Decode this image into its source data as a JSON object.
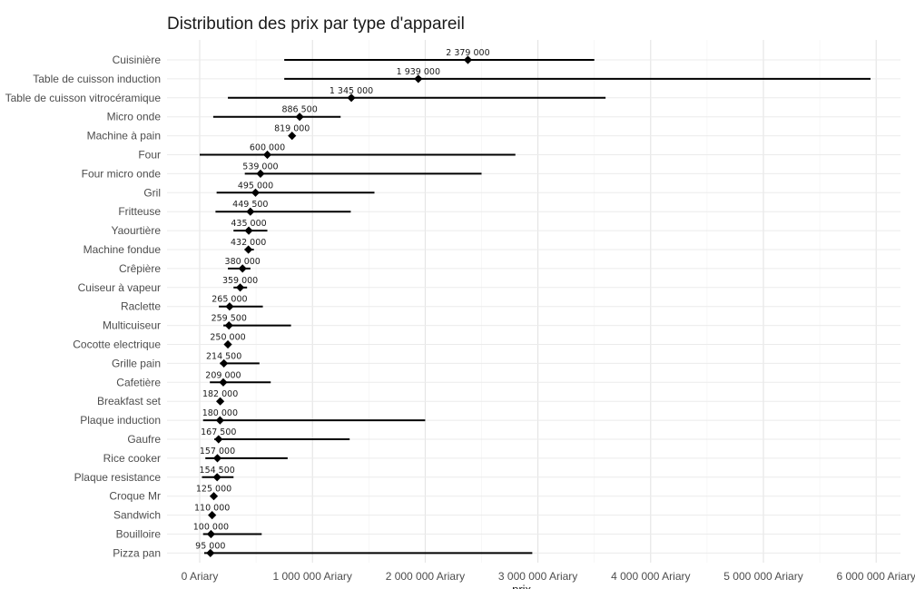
{
  "chart_data": {
    "type": "dot-range",
    "title": "Distribution des prix par type d'appareil",
    "xlabel": "prix",
    "ylabel": "",
    "xlim": [
      -250000,
      6300000
    ],
    "grid": true,
    "x_ticks": [
      0,
      1000000,
      2000000,
      3000000,
      4000000,
      5000000,
      6000000
    ],
    "x_tick_labels": [
      "0 Ariary",
      "1 000 000 Ariary",
      "2 000 000 Ariary",
      "3 000 000 Ariary",
      "4 000 000 Ariary",
      "5 000 000 Ariary",
      "6 000 000 Ariary"
    ],
    "categories": [
      "Cuisinière",
      "Table de cuisson induction",
      "Table de cuisson vitrocéramique",
      "Micro onde",
      "Machine à pain",
      "Four",
      "Four micro onde",
      "Gril",
      "Fritteuse",
      "Yaourtière",
      "Machine fondue",
      "Crêpière",
      "Cuiseur à vapeur",
      "Raclette",
      "Multicuiseur",
      "Cocotte electrique",
      "Grille pain",
      "Cafetière",
      "Breakfast set",
      "Plaque induction",
      "Gaufre",
      "Rice cooker",
      "Plaque resistance",
      "Croque Mr",
      "Sandwich",
      "Bouilloire",
      "Pizza pan"
    ],
    "median": [
      2379000,
      1939000,
      1345000,
      886500,
      819000,
      600000,
      539000,
      495000,
      449500,
      435000,
      432000,
      380000,
      359000,
      265000,
      259500,
      250000,
      214500,
      209000,
      182000,
      180000,
      167500,
      157000,
      154500,
      125000,
      110000,
      100000,
      95000
    ],
    "median_labels": [
      "2 379 000",
      "1 939 000",
      "1 345 000",
      "886 500",
      "819 000",
      "600 000",
      "539 000",
      "495 000",
      "449 500",
      "435 000",
      "432 000",
      "380 000",
      "359 000",
      "265 000",
      "259 500",
      "250 000",
      "214 500",
      "209 000",
      "182 000",
      "180 000",
      "167 500",
      "157 000",
      "154 500",
      "125 000",
      "110 000",
      "100 000",
      "95 000"
    ],
    "min": [
      750000,
      750000,
      250000,
      120000,
      819000,
      0,
      400000,
      150000,
      140000,
      300000,
      400000,
      250000,
      300000,
      170000,
      210000,
      250000,
      180000,
      90000,
      182000,
      30000,
      130000,
      50000,
      20000,
      125000,
      110000,
      30000,
      40000
    ],
    "max": [
      3500000,
      5950000,
      3600000,
      1250000,
      819000,
      2800000,
      2500000,
      1550000,
      1340000,
      600000,
      480000,
      450000,
      420000,
      560000,
      810000,
      250000,
      530000,
      630000,
      182000,
      2000000,
      1330000,
      780000,
      300000,
      125000,
      110000,
      550000,
      2950000
    ]
  }
}
